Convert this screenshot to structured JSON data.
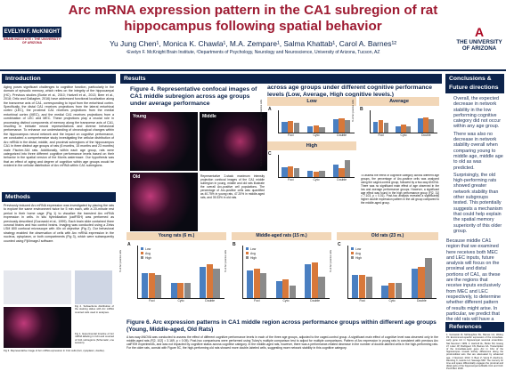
{
  "header": {
    "title": "Arc mRNA expression pattern in the CA1 subregion of rat hippocampus following spatial behavior",
    "authors": "Yu Jung Chen¹, Monica K. Chawla¹, M.A. Zempare¹, Salma Khattab¹, Carol A. Barnes¹²",
    "affiliation": "¹Evelyn F. McKnight Brain Institute, ²Departments of Psychology, Neurology and Neuroscience, University of Arizona, Tucson, AZ",
    "logo_left": "EVELYN F. McKNIGHT",
    "logo_left_sub": "BRAIN INSTITUTE • THE UNIVERSITY OF ARIZONA",
    "logo_right_mark": "A",
    "logo_right_text": "THE UNIVERSITY OF ARIZONA"
  },
  "intro": {
    "heading": "Introduction",
    "body": "Aging poses significant challenges to cognitive function, particularly in the domain of episodic memory, which relies on the integrity of the hippocampal (HC). Previous studies (Burke et al., 2010; Hartzell et al., 2013; Beer et al., 2018; Ortiz and Gallagher, 2016) have addressed functional localization along the transverse axis of CA1, corresponding to input from the entorhinal cortex. Specifically, the distal CA1 receives projections from the lateral entorhinal cortex (LEC), the proximal CA1 receives projections from the medial entorhinal cortex (MEC), and the medial CA1 receives projections from a combination of LEC and MEC. These projections play a crucial role in processing distinct components of memory along the transverse axis of CA1, resulting in intricate neural representations and diverse behavioral performance. To enhance our understanding of chronological changes within the hippocampus neural network and the impact on cognitive performance, we conducted a comprehensive study investigating the cellular distribution of Arc mRNA in the distal, middle, and proximal subregions of the hippocampus CA1 in three distinct age groups of rats (6 months, 15 months and 23 months) male Fischer-344 rats. Additionally, within each age group, rats were categorized into three different cognitive performance levels based on their behavior in the spatial version of the Morris watermaze. Our hypothesis was that an effect of aging and degree of cognition within age groups would be evident in the cellular distribution of Arc mRNA within CA1 subregions."
  },
  "methods": {
    "heading": "Methods",
    "body": "Previously induced Arc mRNA expression was investigated by placing the rats to explore the same environment twice for 5 min each, with a 20-minute rest period in their home cage (Fig 1) to visualize the transient Arc mRNA expression in cells. In situ hybridization (catFISH) was performed as previously described (Guzowski et al., 1999). Each brain slide contained three coronal brains and two control brains. Imaging was conducted using a Zeiss LSM 800 confocal microscope with 40x oil objective (Fig 2). Our behavioral strategy enabled the observation of cells with Arc mRNA expression in the nucleus, cytoplasm, or both compartments (Fig 3), which were subsequently counted using Fiji/ImageJ software.",
    "fig2_caption": "Fig 2. Subsections distribution of the staining slides with Arc mRNA counted cells used in analyses.",
    "fig3_caption": "Fig 3. Representative image of Arc mRNA expression in CA1 cells (foci, cytoplasm, double).",
    "fig1_caption": "Fig 1. Experimental timeline of Arc mRNA labeling in CA1 and counted of CA1 subregions (Schematic, one session)."
  },
  "results": {
    "heading": "Results",
    "fig4_title": "Figure 4. Representative confocal images of CA1 middle subregion across age groups under average performance",
    "young_label": "Young",
    "middle_label": "Middle",
    "old_label": "Old",
    "fig4_caption": "Representative 2-stack maximum intensity projection confocal images of the CA1 middle subregion in young, middle and old rats illustrate the overall Arc-positive cell populations. The percentage of Arc-positive cells was quantified as 40.75% in young rats, 47.20% in middle-aged rats, and 39.33% in old rats.",
    "fig5_title": "Figure 5. Arc expression patterns in CA1 middle region across age groups under different cognitive performance levels (Low, Average, High cognitive levels.)",
    "fig5_caption": "To assess the effect of cognitive category across different age groups, the percentage of Arc-positive cells was analyzed using the caged-control group, followed by a two-way ANOVA. There was no significant main effect of age observed in the low and average performance groups. However, a significant age effect was found in the high performance group (F[2, 31] = 7.103, p = 0.01). Post-hoc analysis revealed a significantly higher double expression pattern in the old group compared to the middle-aged group.",
    "fig6_title": "Figure 6. Arc expression patterns in CA1 middle region across performance groups within different age groups (Young, Middle-aged, Old Rats)",
    "fig6_caption": "A two-way ANOVA was conducted to assess the effect of different cognitive performance levels in each of the three age groups, adjusted to the caged-control group. A significant main effect of cognitive level was observed only in the middle-aged rats (F[2, 102] = 3.169, p = 0.05). Post-hoc comparisons were performed using Tukey's multiple comparison test to adjust for multiple comparisons. Pattern of Arc expression in young rats in consistent with previous Arc catFISH experiments, and was not impacted by cognitive status across cognitive category. In the middle-aged rats, however, there was a performance-related decrease in the number of double-labeled cells in the high-performing rats. For the older rats, consist with Figure 5C, the high-performing old rats showed more double-labeled cells, suggesting more network stability in this cognitive category."
  },
  "fig5_panels": [
    {
      "panel": "A",
      "title": "Low"
    },
    {
      "panel": "B",
      "title": "Average"
    },
    {
      "panel": "C",
      "title": "High"
    }
  ],
  "fig6_panels": [
    {
      "panel": "A",
      "title": "Young rats (6 m.)"
    },
    {
      "panel": "B",
      "title": "Middle-aged rats (15 m.)"
    },
    {
      "panel": "C",
      "title": "Old rats (23 m.)"
    }
  ],
  "chart_data": [
    {
      "type": "bar",
      "title": "Low",
      "categories": [
        "Foci",
        "Cyto",
        "Double"
      ],
      "ylabel": "% of Arc positive cells",
      "ylim": [
        0,
        25
      ],
      "series": [
        {
          "name": "Young",
          "color": "#4a7fc1",
          "values": [
            12,
            7,
            15
          ]
        },
        {
          "name": "Middle",
          "color": "#d8783a",
          "values": [
            13,
            8,
            16
          ]
        },
        {
          "name": "Old",
          "color": "#8a8a8a",
          "values": [
            11,
            6,
            14
          ]
        }
      ]
    },
    {
      "type": "bar",
      "title": "Average",
      "categories": [
        "Foci",
        "Cyto",
        "Double"
      ],
      "ylabel": "% of Arc positive cells",
      "ylim": [
        0,
        25
      ],
      "series": [
        {
          "name": "Young",
          "color": "#4a7fc1",
          "values": [
            12,
            7,
            16
          ]
        },
        {
          "name": "Middle",
          "color": "#d8783a",
          "values": [
            14,
            9,
            17
          ]
        },
        {
          "name": "Old",
          "color": "#8a8a8a",
          "values": [
            11,
            7,
            15
          ]
        }
      ]
    },
    {
      "type": "bar",
      "title": "High",
      "categories": [
        "Foci",
        "Cyto",
        "Double"
      ],
      "ylabel": "% of Arc positive cells",
      "ylim": [
        0,
        25
      ],
      "series": [
        {
          "name": "Young",
          "color": "#4a7fc1",
          "values": [
            11,
            7,
            14
          ]
        },
        {
          "name": "Middle",
          "color": "#d8783a",
          "values": [
            12,
            6,
            10
          ]
        },
        {
          "name": "Old",
          "color": "#8a8a8a",
          "values": [
            10,
            7,
            19
          ]
        }
      ]
    },
    {
      "type": "bar",
      "title": "Young rats (6 m.)",
      "categories": [
        "Foci",
        "Cyto",
        "Double"
      ],
      "ylabel": "% of Arc positive cells",
      "ylim": [
        0,
        25
      ],
      "series": [
        {
          "name": "Low",
          "color": "#4a7fc1",
          "values": [
            12,
            7,
            15
          ]
        },
        {
          "name": "Avg",
          "color": "#d8783a",
          "values": [
            12,
            7,
            16
          ]
        },
        {
          "name": "High",
          "color": "#8a8a8a",
          "values": [
            11,
            7,
            14
          ]
        }
      ]
    },
    {
      "type": "bar",
      "title": "Middle-aged rats (15 m.)",
      "categories": [
        "Foci",
        "Cyto",
        "Double"
      ],
      "ylabel": "% of Arc positive cells",
      "ylim": [
        0,
        25
      ],
      "series": [
        {
          "name": "Low",
          "color": "#4a7fc1",
          "values": [
            13,
            8,
            16
          ]
        },
        {
          "name": "Avg",
          "color": "#d8783a",
          "values": [
            14,
            9,
            17
          ]
        },
        {
          "name": "High",
          "color": "#8a8a8a",
          "values": [
            12,
            6,
            10
          ]
        }
      ]
    },
    {
      "type": "bar",
      "title": "Old rats (23 m.)",
      "categories": [
        "Foci",
        "Cyto",
        "Double"
      ],
      "ylabel": "% of Arc positive cells",
      "ylim": [
        0,
        25
      ],
      "series": [
        {
          "name": "Low",
          "color": "#4a7fc1",
          "values": [
            11,
            6,
            14
          ]
        },
        {
          "name": "Avg",
          "color": "#d8783a",
          "values": [
            11,
            7,
            15
          ]
        },
        {
          "name": "High",
          "color": "#8a8a8a",
          "values": [
            10,
            7,
            19
          ]
        }
      ]
    }
  ],
  "conclusions": {
    "heading": "Conclusions & Future directions",
    "items": [
      "Overall, the expected decrease in network stability in the low performing cognitive category did not occur within any age group.",
      "There was also no decrease in network stability overall when comparing young to middle age, middle age to old as was predicted.",
      "Surprisingly, the old high-performing rats showed greater network stability than other subgroups tested. This potentially suggests a mechanism that could help explain the spatial memory superiority of this older group."
    ],
    "para": "Because middle CA1 region that we examined here receives both MEC and LEC inputs, future analysis will focus on the proximal and distal portions of CA1, as these are the regions that receive inputs exclusively from MEC and LEC respectively, to determine whether different pattern of results might arise. In particular, we predict that the old rats will have a less stable network in the proximal region that carries predominantly spatial information from MEC."
  },
  "references": {
    "heading": "References",
    "body": "1. Guzowski JF, McNaughton BL, Barnes CA, Worley PF. Environment-specific expression of the immediate-early gene Arc in hippocampal neuronal ensembles. Nat Neurosci. 1999. 2. Hartzell AL, Burke SN, Hoang LT, Lister JP, Rodriguez CN, Barnes CA. Transcription of the immediate-early gene Arc in CA1 of the hippocampus reveals activity differences along the proximodistal axis that are attenuated by advanced age. J Neurosci. 2013. 3. Beer Z, Vavra P, Atucha E, Rentzing K, Heinze HJ, Sauvage MM. The memory for time and space differentially engages the proximal and distal parts of the hippocampal subfields CA1 and CA3. PLoS Biol. 2018."
  },
  "colors": {
    "navy": "#0c234b",
    "red": "#9e1b32",
    "young": "#4a7fc1",
    "middle": "#d8783a",
    "old": "#8a8a8a"
  }
}
